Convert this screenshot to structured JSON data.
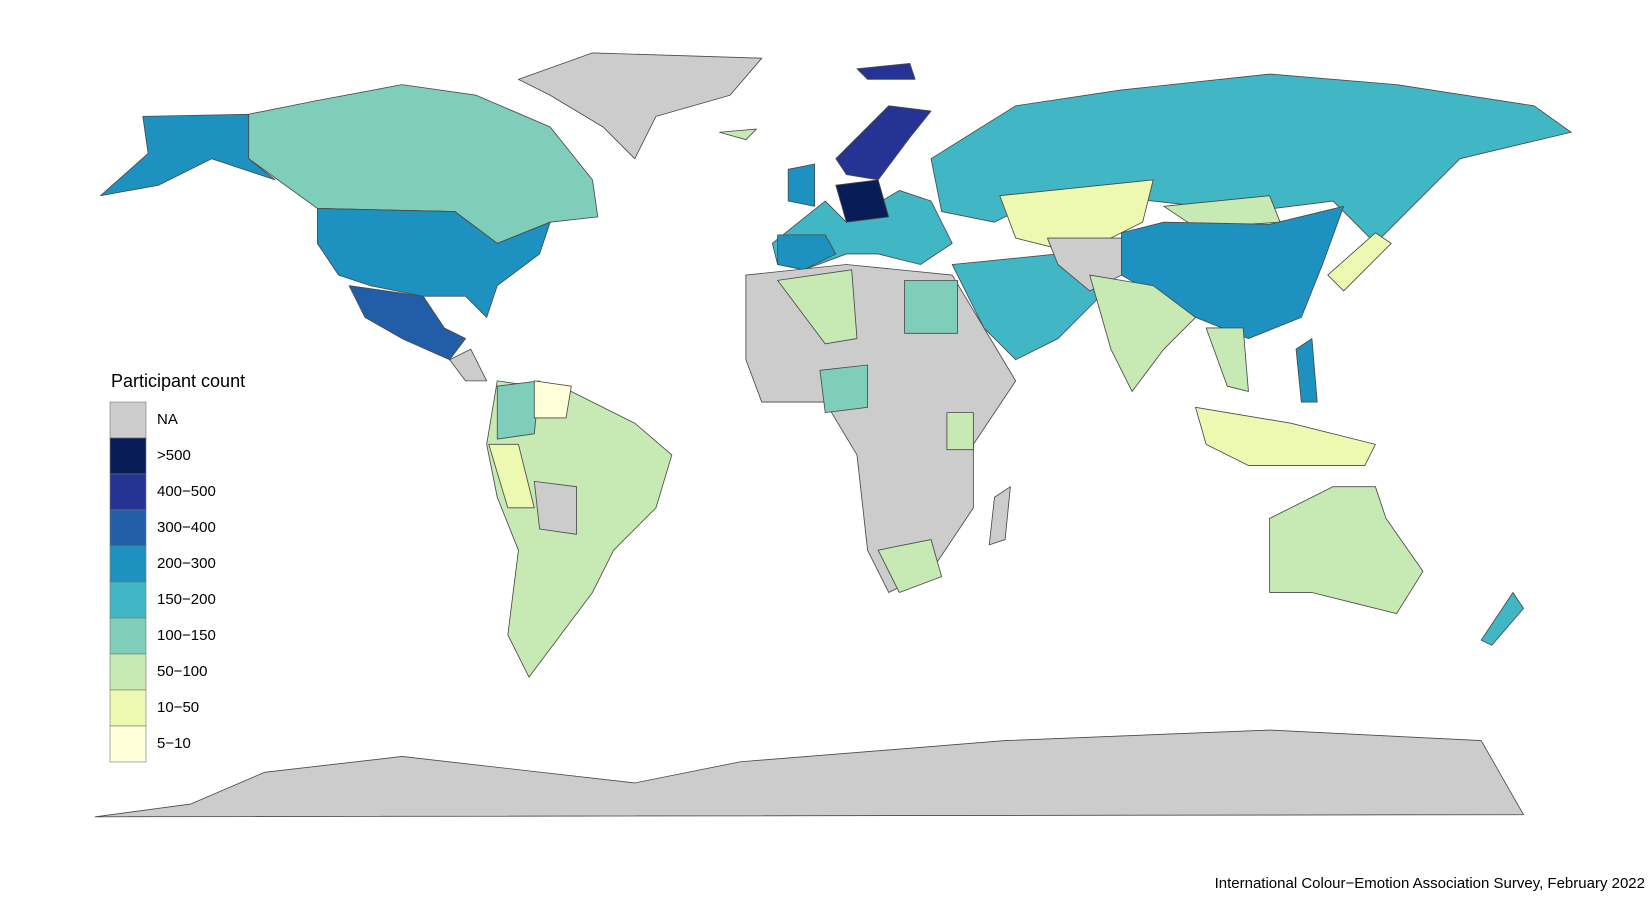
{
  "legend": {
    "title": "Participant count",
    "items": [
      {
        "label": "NA",
        "color": "#cccccc"
      },
      {
        "label": ">500",
        "color": "#081d58"
      },
      {
        "label": "400−500",
        "color": "#253494"
      },
      {
        "label": "300−400",
        "color": "#225ea8"
      },
      {
        "label": "200−300",
        "color": "#1d91c0"
      },
      {
        "label": "150−200",
        "color": "#41b6c4"
      },
      {
        "label": "100−150",
        "color": "#7fcdbb"
      },
      {
        "label": "50−100",
        "color": "#c7e9b4"
      },
      {
        "label": "10−50",
        "color": "#edf8b1"
      },
      {
        "label": "5−10",
        "color": "#ffffd9"
      }
    ]
  },
  "caption": "International Colour−Emotion Association Survey, February 2022"
}
